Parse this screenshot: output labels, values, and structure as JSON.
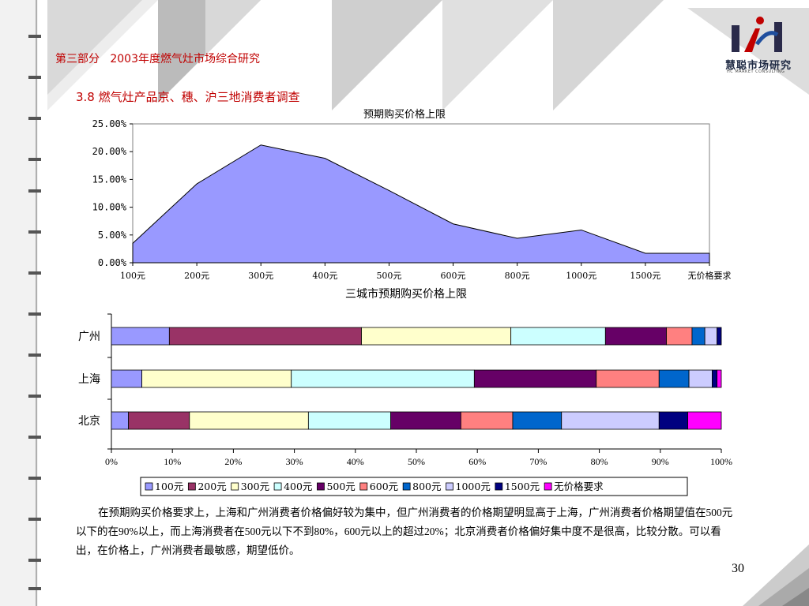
{
  "header": {
    "section": "第三部分",
    "title": "2003年度燃气灶市场综合研究",
    "subtitle": "3.8  燃气灶产品京、穗、沪三地消费者调查"
  },
  "brand": {
    "name": "慧聪市场研究",
    "tagline": "HC MARKET CONSULTING"
  },
  "chart_data": [
    {
      "type": "area",
      "title": "预期购买价格上限",
      "categories": [
        "100元",
        "200元",
        "300元",
        "400元",
        "500元",
        "600元",
        "800元",
        "1000元",
        "1500元",
        "无价格要求"
      ],
      "values": [
        3.5,
        14.2,
        21.2,
        18.8,
        13.0,
        7.0,
        4.4,
        5.9,
        1.7,
        1.7
      ],
      "ylim": [
        0,
        25
      ],
      "yticks": [
        "25.00%",
        "20.00%",
        "15.00%",
        "10.00%",
        "5.00%",
        "0.00%"
      ],
      "color": "#9999ff",
      "grid": false
    },
    {
      "type": "bar",
      "orientation": "horizontal",
      "stacked": true,
      "title": "三城市预期购买价格上限",
      "categories": [
        "广州",
        "上海",
        "北京"
      ],
      "xticks": [
        "0%",
        "10%",
        "20%",
        "30%",
        "40%",
        "50%",
        "60%",
        "70%",
        "80%",
        "90%",
        "100%"
      ],
      "xlim": [
        0,
        100
      ],
      "legend_position": "bottom",
      "series": [
        {
          "name": "100元",
          "color": "#9999ff",
          "values": [
            9.5,
            5.0,
            2.8
          ]
        },
        {
          "name": "200元",
          "color": "#993366",
          "values": [
            31.5,
            0,
            10.0
          ]
        },
        {
          "name": "300元",
          "color": "#ffffcc",
          "values": [
            24.5,
            24.5,
            19.5
          ]
        },
        {
          "name": "400元",
          "color": "#ccffff",
          "values": [
            15.5,
            30.0,
            13.5
          ]
        },
        {
          "name": "500元",
          "color": "#660066",
          "values": [
            10.0,
            20.0,
            11.5
          ]
        },
        {
          "name": "600元",
          "color": "#ff8080",
          "values": [
            4.2,
            10.3,
            8.5
          ]
        },
        {
          "name": "800元",
          "color": "#0066cc",
          "values": [
            2.1,
            4.9,
            8.0
          ]
        },
        {
          "name": "1000元",
          "color": "#ccccff",
          "values": [
            2.0,
            3.8,
            16.0
          ]
        },
        {
          "name": "1500元",
          "color": "#000080",
          "values": [
            0.7,
            0.8,
            4.7
          ]
        },
        {
          "name": "无价格要求",
          "color": "#ff00ff",
          "values": [
            0,
            0.7,
            5.5
          ]
        }
      ]
    }
  ],
  "paragraph": "在预期购买价格要求上，上海和广州消费者价格偏好较为集中，但广州消费者的价格期望明显高于上海，广州消费者价格期望值在500元以下的在90%以上，而上海消费者在500元以下不到80%，600元以上的超过20%；北京消费者价格偏好集中度不是很高，比较分散。可以看出，在价格上，广州消费者最敏感，期望低价。",
  "page_number": "30"
}
